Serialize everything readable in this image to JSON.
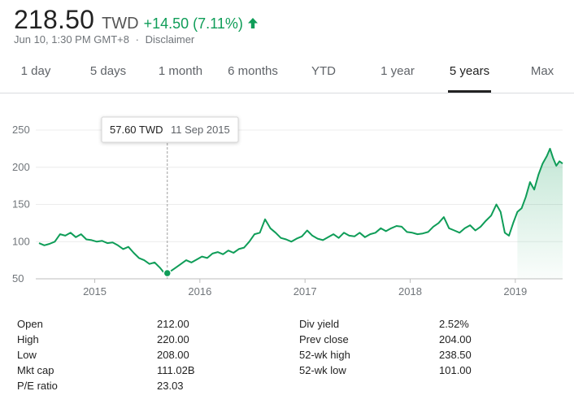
{
  "quote": {
    "price": "218.50",
    "currency": "TWD",
    "change": "+14.50 (7.11%)",
    "timestamp": "Jun 10, 1:30 PM GMT+8",
    "separator": "·",
    "disclaimer": "Disclaimer",
    "change_color": "#0f9d58",
    "change_icon": "arrow-up-icon"
  },
  "tabs": [
    {
      "label": "1 day",
      "active": false
    },
    {
      "label": "5 days",
      "active": false
    },
    {
      "label": "1 month",
      "active": false
    },
    {
      "label": "6 months",
      "active": false
    },
    {
      "label": "YTD",
      "active": false
    },
    {
      "label": "1 year",
      "active": false
    },
    {
      "label": "5 years",
      "active": true
    },
    {
      "label": "Max",
      "active": false
    }
  ],
  "tooltip": {
    "value": "57.60 TWD",
    "date": "11 Sep 2015"
  },
  "chart_data": {
    "type": "area",
    "y_ticks": [
      50,
      100,
      150,
      200,
      250
    ],
    "ylim": [
      50,
      250
    ],
    "x_ticks": [
      "2015",
      "2016",
      "2017",
      "2018",
      "2019"
    ],
    "x_tick_values": [
      2015.0,
      2016.0,
      2017.0,
      2018.0,
      2019.0
    ],
    "xlim": [
      2014.47,
      2019.45
    ],
    "line_color": "#0f9d58",
    "grid": true,
    "highlight": {
      "x": 2015.69,
      "y": 57.6
    },
    "series": [
      {
        "x": [
          2014.47,
          2014.52,
          2014.57,
          2014.62,
          2014.67,
          2014.72,
          2014.77,
          2014.82,
          2014.87,
          2014.92,
          2014.97,
          2015.02,
          2015.07,
          2015.12,
          2015.17,
          2015.22,
          2015.27,
          2015.32,
          2015.37,
          2015.42,
          2015.47,
          2015.52,
          2015.57,
          2015.62,
          2015.66,
          2015.69,
          2015.72,
          2015.77,
          2015.82,
          2015.87,
          2015.92,
          2015.97,
          2016.02,
          2016.07,
          2016.12,
          2016.17,
          2016.22,
          2016.27,
          2016.32,
          2016.37,
          2016.42,
          2016.47,
          2016.52,
          2016.57,
          2016.62,
          2016.67,
          2016.72,
          2016.77,
          2016.82,
          2016.87,
          2016.92,
          2016.97,
          2017.02,
          2017.07,
          2017.12,
          2017.17,
          2017.22,
          2017.27,
          2017.32,
          2017.37,
          2017.42,
          2017.47,
          2017.52,
          2017.57,
          2017.62,
          2017.67,
          2017.72,
          2017.77,
          2017.82,
          2017.87,
          2017.92,
          2017.97,
          2018.02,
          2018.07,
          2018.12,
          2018.17,
          2018.22,
          2018.27,
          2018.32,
          2018.37,
          2018.42,
          2018.47,
          2018.52,
          2018.57,
          2018.62,
          2018.67,
          2018.72,
          2018.77,
          2018.82,
          2018.86,
          2018.9,
          2018.94,
          2018.98,
          2019.02,
          2019.06,
          2019.1,
          2019.14,
          2019.18,
          2019.22,
          2019.26,
          2019.3,
          2019.33,
          2019.36,
          2019.39,
          2019.42,
          2019.45
        ],
        "y": [
          98,
          95,
          97,
          100,
          110,
          108,
          112,
          106,
          110,
          103,
          102,
          100,
          101,
          98,
          99,
          95,
          90,
          93,
          85,
          78,
          75,
          70,
          72,
          65,
          58,
          57.6,
          60,
          65,
          70,
          75,
          72,
          76,
          80,
          78,
          84,
          86,
          83,
          88,
          85,
          90,
          92,
          100,
          110,
          112,
          130,
          118,
          112,
          105,
          103,
          100,
          104,
          107,
          115,
          108,
          104,
          102,
          106,
          110,
          105,
          112,
          108,
          107,
          112,
          106,
          110,
          112,
          118,
          114,
          118,
          121,
          120,
          113,
          112,
          110,
          111,
          113,
          120,
          125,
          133,
          118,
          115,
          112,
          118,
          122,
          115,
          120,
          128,
          135,
          150,
          140,
          112,
          108,
          125,
          140,
          145,
          160,
          180,
          170,
          190,
          205,
          215,
          225,
          212,
          202,
          208,
          205
        ]
      }
    ]
  },
  "stats_left": [
    {
      "label": "Open",
      "value": "212.00"
    },
    {
      "label": "High",
      "value": "220.00"
    },
    {
      "label": "Low",
      "value": "208.00"
    },
    {
      "label": "Mkt cap",
      "value": "111.02B"
    },
    {
      "label": "P/E ratio",
      "value": "23.03"
    }
  ],
  "stats_right": [
    {
      "label": "Div yield",
      "value": "2.52%"
    },
    {
      "label": "Prev close",
      "value": "204.00"
    },
    {
      "label": "52-wk high",
      "value": "238.50"
    },
    {
      "label": "52-wk low",
      "value": "101.00"
    }
  ]
}
